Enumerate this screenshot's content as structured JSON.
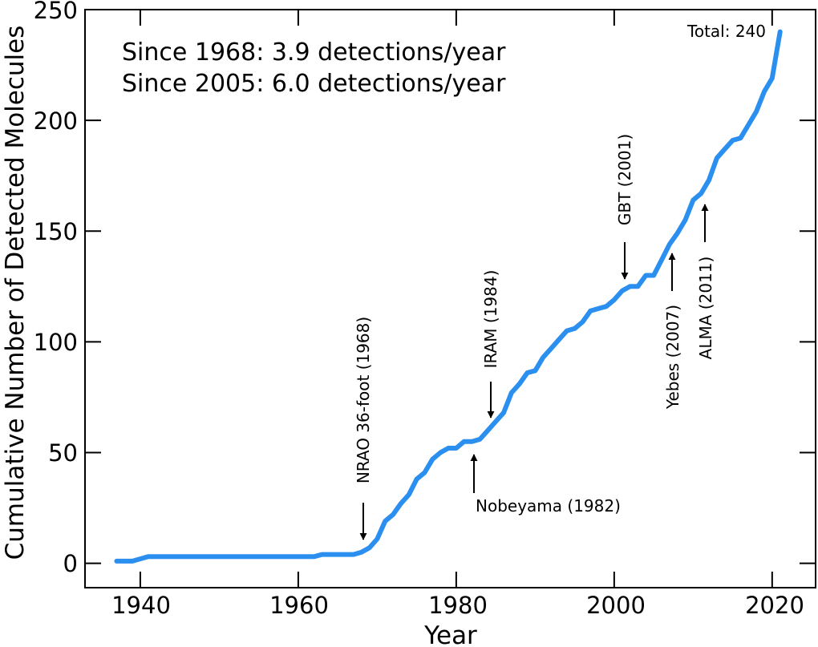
{
  "chart_data": {
    "type": "line",
    "xlabel": "Year",
    "ylabel": "Cumulative Number of Detected Molecules",
    "xlim": [
      1933,
      2025.5
    ],
    "ylim": [
      -11,
      250
    ],
    "xticks": [
      1940,
      1960,
      1980,
      2000,
      2020
    ],
    "yticks": [
      0,
      50,
      100,
      150,
      200,
      250
    ],
    "grid": false,
    "line_color": "#2b8ff0",
    "series": [
      {
        "x": [
          1937,
          1939,
          1941,
          1950,
          1960,
          1962,
          1963,
          1967,
          1968,
          1969,
          1970,
          1971,
          1972,
          1973,
          1974,
          1975,
          1976,
          1977,
          1978,
          1979,
          1980,
          1981,
          1982,
          1983,
          1984,
          1985,
          1986,
          1987,
          1988,
          1989,
          1990,
          1991,
          1992,
          1993,
          1994,
          1995,
          1996,
          1997,
          1998,
          1999,
          2000,
          2001,
          2002,
          2003,
          2004,
          2005,
          2006,
          2007,
          2008,
          2009,
          2010,
          2011,
          2012,
          2013,
          2014,
          2015,
          2016,
          2017,
          2018,
          2019,
          2020,
          2021
        ],
        "y": [
          1,
          1,
          3,
          3,
          3,
          3,
          4,
          4,
          5,
          7,
          11,
          19,
          22,
          27,
          31,
          38,
          41,
          47,
          50,
          52,
          52,
          55,
          55,
          56,
          60,
          64,
          68,
          77,
          81,
          86,
          87,
          93,
          97,
          101,
          105,
          106,
          109,
          114,
          115,
          116,
          119,
          123,
          125,
          125,
          130,
          130,
          137,
          144,
          149,
          155,
          164,
          167,
          173,
          183,
          187,
          191,
          192,
          198,
          204,
          213,
          219,
          240
        ]
      }
    ],
    "rate_annotations": [
      "Since 1968: 3.9 detections/year",
      "Since 2005: 6.0 detections/year"
    ],
    "total_label": "Total: 240",
    "telescope_annotations": [
      {
        "label": "NRAO 36-foot (1968)",
        "year": 1968
      },
      {
        "label": "Nobeyama (1982)",
        "year": 1982
      },
      {
        "label": "IRAM (1984)",
        "year": 1984
      },
      {
        "label": "GBT (2001)",
        "year": 2001
      },
      {
        "label": "Yebes (2007)",
        "year": 2007
      },
      {
        "label": "ALMA (2011)",
        "year": 2011
      }
    ]
  }
}
